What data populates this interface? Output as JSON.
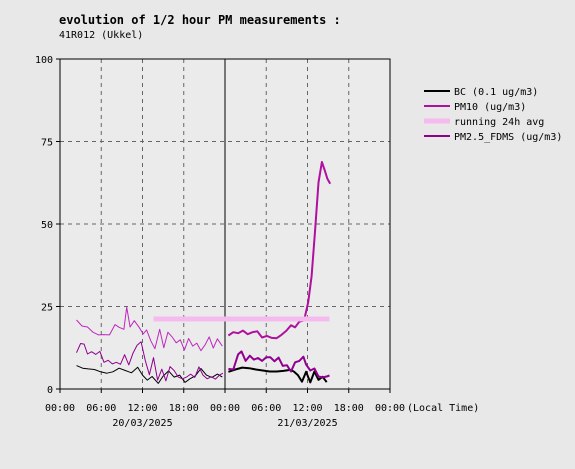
{
  "chart_data": {
    "type": "line",
    "title": "evolution of 1/2 hour PM measurements :",
    "subtitle": "41R012 (Ukkel)",
    "xlabel": "(Local Time)",
    "ylabel": "",
    "x_range_hours": [
      0,
      48
    ],
    "x_tick_hours": [
      0,
      6,
      12,
      18,
      24,
      30,
      36,
      42,
      48
    ],
    "xtick_labels": [
      "00:00",
      "06:00",
      "12:00",
      "18:00",
      "00:00",
      "06:00",
      "12:00",
      "18:00",
      "00:00"
    ],
    "date_labels": [
      {
        "text": "20/03/2025",
        "hour": 12
      },
      {
        "text": "21/03/2025",
        "hour": 36
      }
    ],
    "day_separator_hour": 24,
    "ylim": [
      0,
      100
    ],
    "yticks": [
      0,
      25,
      50,
      75,
      100
    ],
    "ytick_labels": [
      "0",
      "25",
      "50",
      "75",
      "100"
    ],
    "grid": true,
    "legend_position": "right",
    "series": [
      {
        "name": "BC (0.1 ug/m3)",
        "color": "#000000",
        "width": 1,
        "points": [
          [
            2.4,
            7.1
          ],
          [
            3.3,
            6.3
          ],
          [
            4.1,
            6.1
          ],
          [
            5.0,
            5.9
          ],
          [
            5.9,
            5.2
          ],
          [
            6.8,
            4.8
          ],
          [
            7.7,
            5.2
          ],
          [
            8.6,
            6.3
          ],
          [
            9.5,
            5.6
          ],
          [
            10.4,
            4.9
          ],
          [
            11.3,
            6.6
          ],
          [
            12.0,
            4.2
          ],
          [
            12.7,
            2.7
          ],
          [
            13.4,
            3.8
          ],
          [
            14.3,
            1.7
          ],
          [
            15.0,
            3.9
          ],
          [
            15.8,
            5.5
          ],
          [
            16.6,
            3.6
          ],
          [
            17.4,
            4.2
          ],
          [
            18.2,
            2.0
          ],
          [
            18.9,
            3.1
          ],
          [
            19.7,
            4.0
          ],
          [
            20.5,
            6.2
          ],
          [
            21.3,
            4.2
          ],
          [
            22.1,
            3.5
          ],
          [
            22.9,
            4.5
          ],
          [
            23.6,
            3.6
          ]
        ]
      },
      {
        "name": "BC (0.1 ug/m3)",
        "color": "#000000",
        "width": 2,
        "points": [
          [
            24.5,
            5.2
          ],
          [
            25.5,
            5.9
          ],
          [
            26.5,
            6.5
          ],
          [
            27.5,
            6.3
          ],
          [
            28.5,
            5.9
          ],
          [
            29.5,
            5.6
          ],
          [
            30.5,
            5.3
          ],
          [
            31.5,
            5.3
          ],
          [
            32.5,
            5.5
          ],
          [
            33.5,
            5.8
          ],
          [
            34.0,
            5.3
          ],
          [
            34.6,
            4.2
          ],
          [
            35.2,
            2.2
          ],
          [
            35.8,
            5.2
          ],
          [
            36.4,
            2.0
          ],
          [
            37.0,
            5.3
          ],
          [
            37.6,
            2.8
          ],
          [
            38.2,
            3.7
          ],
          [
            38.8,
            2.1
          ]
        ]
      },
      {
        "name": "PM10 (ug/m3)",
        "color": "#c026c0",
        "width": 1,
        "points": [
          [
            2.4,
            20.9
          ],
          [
            3.2,
            19.1
          ],
          [
            4.0,
            18.8
          ],
          [
            4.8,
            17.2
          ],
          [
            5.6,
            16.4
          ],
          [
            6.4,
            16.5
          ],
          [
            7.2,
            16.4
          ],
          [
            8.0,
            19.5
          ],
          [
            8.6,
            18.7
          ],
          [
            9.3,
            18.1
          ],
          [
            9.7,
            24.8
          ],
          [
            10.2,
            18.8
          ],
          [
            10.8,
            20.7
          ],
          [
            11.5,
            18.7
          ],
          [
            12.1,
            16.7
          ],
          [
            12.6,
            17.9
          ],
          [
            13.2,
            14.6
          ],
          [
            13.8,
            12.2
          ],
          [
            14.5,
            18.1
          ],
          [
            15.1,
            12.5
          ],
          [
            15.7,
            17.2
          ],
          [
            16.3,
            15.8
          ],
          [
            16.9,
            14.0
          ],
          [
            17.5,
            14.9
          ],
          [
            18.1,
            11.8
          ],
          [
            18.7,
            15.3
          ],
          [
            19.3,
            13.0
          ],
          [
            19.9,
            13.9
          ],
          [
            20.5,
            11.6
          ],
          [
            21.1,
            13.4
          ],
          [
            21.7,
            15.8
          ],
          [
            22.3,
            12.4
          ],
          [
            22.9,
            15.2
          ],
          [
            23.6,
            13.0
          ]
        ]
      },
      {
        "name": "PM10 (ug/m3)",
        "color": "#b0109e",
        "width": 2,
        "points": [
          [
            24.5,
            16.2
          ],
          [
            25.2,
            17.2
          ],
          [
            25.9,
            16.9
          ],
          [
            26.6,
            17.7
          ],
          [
            27.3,
            16.6
          ],
          [
            28.0,
            17.2
          ],
          [
            28.7,
            17.5
          ],
          [
            29.4,
            15.6
          ],
          [
            30.1,
            16.1
          ],
          [
            30.8,
            15.5
          ],
          [
            31.5,
            15.4
          ],
          [
            32.2,
            16.4
          ],
          [
            32.9,
            17.6
          ],
          [
            33.6,
            19.3
          ],
          [
            34.2,
            18.7
          ],
          [
            34.8,
            20.4
          ],
          [
            35.5,
            20.8
          ],
          [
            36.1,
            26.3
          ],
          [
            36.6,
            34.2
          ],
          [
            37.1,
            48.1
          ],
          [
            37.6,
            62.6
          ],
          [
            38.1,
            68.8
          ],
          [
            38.5,
            66.3
          ],
          [
            38.9,
            63.7
          ],
          [
            39.3,
            62.2
          ]
        ]
      },
      {
        "name": "running 24h avg",
        "color": "#f5bbee",
        "width": 5,
        "points": [
          [
            13.6,
            21.2
          ],
          [
            39.2,
            21.2
          ]
        ]
      },
      {
        "name": "PM2.5_FDMS (ug/m3)",
        "color": "#900090",
        "width": 1,
        "points": [
          [
            2.4,
            11.0
          ],
          [
            3.0,
            13.8
          ],
          [
            3.5,
            13.6
          ],
          [
            4.0,
            10.6
          ],
          [
            4.6,
            11.3
          ],
          [
            5.2,
            10.5
          ],
          [
            5.8,
            11.4
          ],
          [
            6.4,
            8.1
          ],
          [
            7.0,
            8.7
          ],
          [
            7.6,
            7.6
          ],
          [
            8.2,
            8.1
          ],
          [
            8.8,
            7.5
          ],
          [
            9.4,
            10.4
          ],
          [
            10.0,
            7.3
          ],
          [
            10.6,
            10.8
          ],
          [
            11.2,
            13.2
          ],
          [
            11.8,
            14.3
          ],
          [
            12.4,
            8.6
          ],
          [
            13.0,
            4.3
          ],
          [
            13.6,
            9.5
          ],
          [
            14.2,
            2.7
          ],
          [
            14.8,
            6.0
          ],
          [
            15.4,
            2.5
          ],
          [
            16.0,
            6.8
          ],
          [
            16.6,
            5.6
          ],
          [
            17.2,
            3.6
          ],
          [
            17.8,
            3.1
          ],
          [
            18.4,
            3.6
          ],
          [
            19.0,
            4.5
          ],
          [
            19.6,
            3.5
          ],
          [
            20.2,
            6.7
          ],
          [
            20.8,
            4.2
          ],
          [
            21.4,
            3.1
          ],
          [
            22.0,
            3.7
          ],
          [
            22.6,
            3.0
          ],
          [
            23.2,
            4.2
          ],
          [
            23.7,
            4.8
          ]
        ]
      },
      {
        "name": "PM2.5_FDMS (ug/m3)",
        "color": "#900090",
        "width": 2,
        "points": [
          [
            24.5,
            6.1
          ],
          [
            25.2,
            5.9
          ],
          [
            25.9,
            10.5
          ],
          [
            26.4,
            11.4
          ],
          [
            27.0,
            8.5
          ],
          [
            27.6,
            10.1
          ],
          [
            28.2,
            8.9
          ],
          [
            28.8,
            9.4
          ],
          [
            29.4,
            8.5
          ],
          [
            30.0,
            9.6
          ],
          [
            30.6,
            9.6
          ],
          [
            31.2,
            8.4
          ],
          [
            31.8,
            9.5
          ],
          [
            32.4,
            7.0
          ],
          [
            33.0,
            7.2
          ],
          [
            33.6,
            5.3
          ],
          [
            34.2,
            8.1
          ],
          [
            34.8,
            8.5
          ],
          [
            35.4,
            9.8
          ],
          [
            35.8,
            7.4
          ],
          [
            36.4,
            5.6
          ],
          [
            37.0,
            6.2
          ],
          [
            37.6,
            3.8
          ],
          [
            38.2,
            3.5
          ],
          [
            38.8,
            3.8
          ],
          [
            39.2,
            4.1
          ]
        ]
      }
    ],
    "legend": [
      {
        "label": "BC (0.1 ug/m3)",
        "color": "#000000",
        "width": 2
      },
      {
        "label": "PM10 (ug/m3)",
        "color": "#b0109e",
        "width": 2
      },
      {
        "label": "running 24h avg",
        "color": "#f5bbee",
        "width": 5
      },
      {
        "label": "PM2.5_FDMS (ug/m3)",
        "color": "#900090",
        "width": 2
      }
    ]
  }
}
